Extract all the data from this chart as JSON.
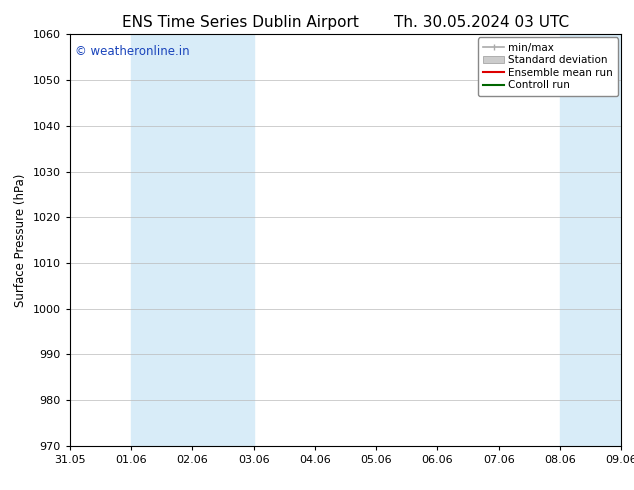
{
  "title_left": "ENS Time Series Dublin Airport",
  "title_right": "Th. 30.05.2024 03 UTC",
  "ylabel": "Surface Pressure (hPa)",
  "ylim": [
    970,
    1060
  ],
  "yticks": [
    970,
    980,
    990,
    1000,
    1010,
    1020,
    1030,
    1040,
    1050,
    1060
  ],
  "xtick_labels": [
    "31.05",
    "01.06",
    "02.06",
    "03.06",
    "04.06",
    "05.06",
    "06.06",
    "07.06",
    "08.06",
    "09.06"
  ],
  "xtick_positions": [
    0,
    1,
    2,
    3,
    4,
    5,
    6,
    7,
    8,
    9
  ],
  "xlim": [
    0,
    9
  ],
  "shaded_bands": [
    {
      "x_start": 1,
      "x_end": 3,
      "color": "#d8ecf8"
    },
    {
      "x_start": 8,
      "x_end": 9,
      "color": "#d8ecf8"
    }
  ],
  "watermark_text": "© weatheronline.in",
  "watermark_color": "#1a44bb",
  "watermark_fontsize": 8.5,
  "legend_entries": [
    {
      "label": "min/max",
      "color": "#aaaaaa",
      "style": "minmax"
    },
    {
      "label": "Standard deviation",
      "color": "#cccccc",
      "style": "patch"
    },
    {
      "label": "Ensemble mean run",
      "color": "#dd0000",
      "style": "line"
    },
    {
      "label": "Controll run",
      "color": "#006600",
      "style": "line"
    }
  ],
  "bg_color": "#ffffff",
  "grid_color": "#bbbbbb",
  "title_fontsize": 11,
  "axis_fontsize": 8.5,
  "tick_fontsize": 8,
  "legend_fontsize": 7.5
}
